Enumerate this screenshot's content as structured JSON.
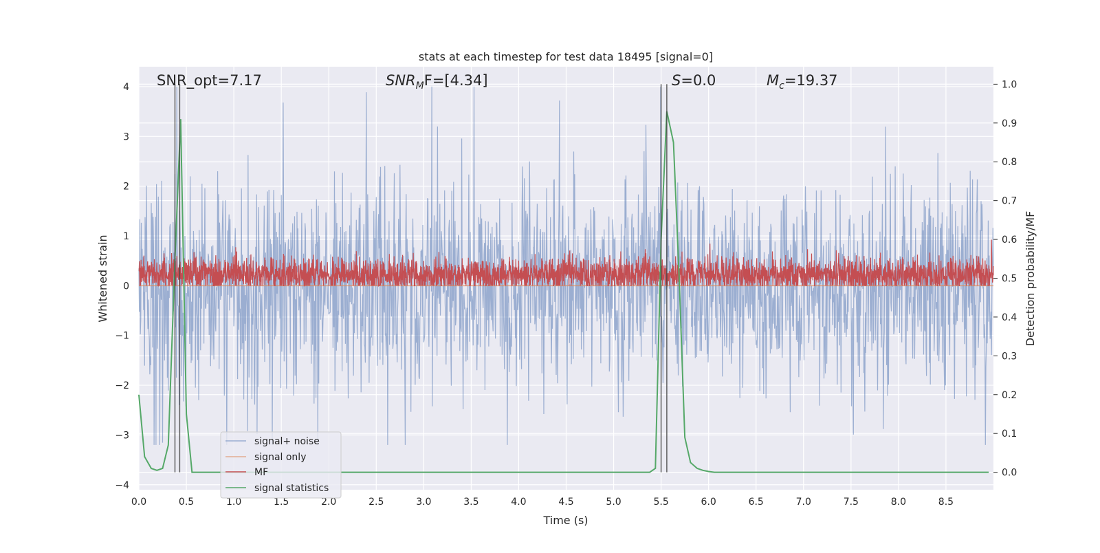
{
  "chart_data": {
    "type": "line",
    "title": "stats at each timestep for test data 18495 [signal=0]",
    "xlabel": "Time (s)",
    "ylabel_left": "Whitened strain",
    "ylabel_right": "Detection probability/MF",
    "xlim": [
      0.0,
      9.0
    ],
    "ylim_left": [
      -4.1,
      4.4
    ],
    "ylim_right": [
      -0.045,
      1.045
    ],
    "x_ticks": [
      0.0,
      0.5,
      1.0,
      1.5,
      2.0,
      2.5,
      3.0,
      3.5,
      4.0,
      4.5,
      5.0,
      5.5,
      6.0,
      6.5,
      7.0,
      7.5,
      8.0,
      8.5
    ],
    "x_tick_labels": [
      "0.0",
      "0.5",
      "1.0",
      "1.5",
      "2.0",
      "2.5",
      "3.0",
      "3.5",
      "4.0",
      "4.5",
      "5.0",
      "5.5",
      "6.0",
      "6.5",
      "7.0",
      "7.5",
      "8.0",
      "8.5"
    ],
    "y_left_ticks": [
      -4,
      -3,
      -2,
      -1,
      0,
      1,
      2,
      3,
      4
    ],
    "y_left_tick_labels": [
      "−4",
      "−3",
      "−2",
      "−1",
      "0",
      "1",
      "2",
      "3",
      "4"
    ],
    "y_right_ticks": [
      0.0,
      0.1,
      0.2,
      0.3,
      0.4,
      0.5,
      0.6,
      0.7,
      0.8,
      0.9,
      1.0
    ],
    "y_right_tick_labels": [
      "0.0",
      "0.1",
      "0.2",
      "0.3",
      "0.4",
      "0.5",
      "0.6",
      "0.7",
      "0.8",
      "0.9",
      "1.0"
    ],
    "grid": true,
    "background": "#eaeaf2",
    "legend_placement": "lower-left",
    "annotations": {
      "snr_opt": "SNR_opt=7.17",
      "snr_mf_prefix": "SNR",
      "snr_mf_sub": "M",
      "snr_mf_suffix": "F=[4.34]",
      "s_prefix": "S",
      "s_suffix": "=0.0",
      "mc_prefix": "M",
      "mc_sub": "c",
      "mc_suffix": "=19.37"
    },
    "vertical_markers": [
      0.38,
      0.43,
      5.5,
      5.56
    ],
    "series": [
      {
        "name": "signal+ noise",
        "color": "#4c72b0",
        "axis": "left",
        "kind": "noise",
        "sample_rate": 200,
        "typical_amplitude": 1.25,
        "peak_max": 4.0,
        "peak_min": -3.2
      },
      {
        "name": "signal only",
        "color": "#dd8452",
        "axis": "left",
        "kind": "flat",
        "value": 0.0
      },
      {
        "name": "MF",
        "color": "#c44e52",
        "axis": "left",
        "kind": "noise_band",
        "baseline": 0.22,
        "range": [
          0.0,
          0.95
        ]
      },
      {
        "name": "signal statistics",
        "color": "#55a868",
        "axis": "right",
        "kind": "curve",
        "x": [
          0.0,
          0.06,
          0.13,
          0.19,
          0.25,
          0.31,
          0.38,
          0.44,
          0.5,
          0.56,
          0.63,
          0.7,
          1.0,
          2.0,
          3.0,
          4.0,
          5.0,
          5.25,
          5.38,
          5.44,
          5.5,
          5.56,
          5.63,
          5.69,
          5.75,
          5.81,
          5.88,
          5.94,
          6.0,
          6.06,
          6.13,
          6.5,
          7.0,
          8.0,
          8.95
        ],
        "y": [
          0.2,
          0.04,
          0.01,
          0.005,
          0.01,
          0.07,
          0.55,
          0.91,
          0.15,
          0.0,
          0.0,
          0.0,
          0.0,
          0.0,
          0.0,
          0.0,
          0.0,
          0.0,
          0.0,
          0.01,
          0.6,
          0.93,
          0.85,
          0.5,
          0.09,
          0.025,
          0.01,
          0.005,
          0.002,
          0.0,
          0.0,
          0.0,
          0.0,
          0.0,
          0.0
        ]
      }
    ]
  }
}
